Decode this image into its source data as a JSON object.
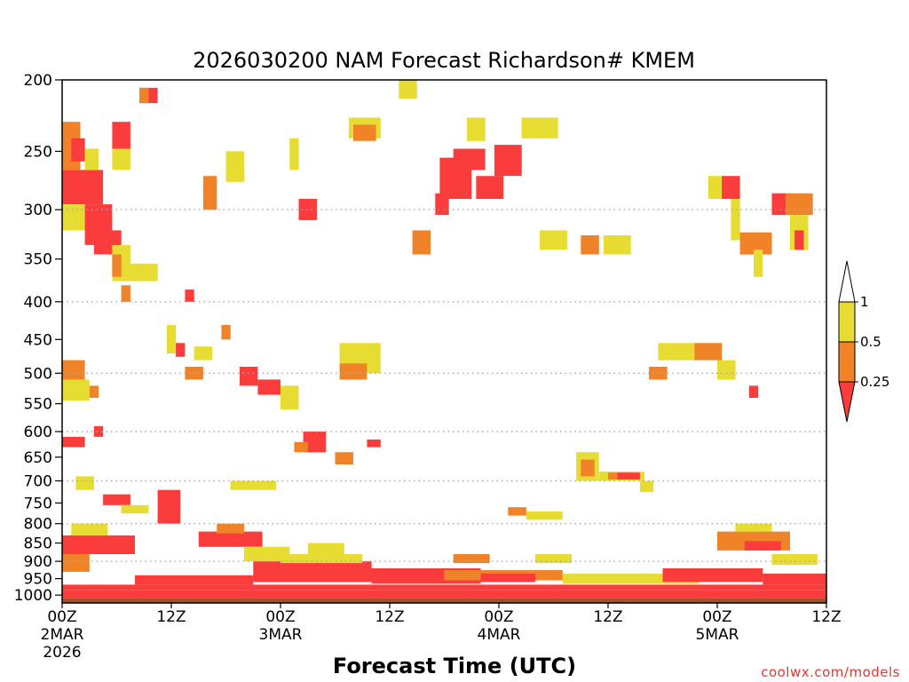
{
  "chart_data": {
    "type": "heatmap",
    "title": "2026030200 NAM Forecast Richardson# KMEM",
    "xlabel": "Forecast Time (UTC)",
    "ylabel": "",
    "y_scale": "log",
    "y_range_hPa": [
      200,
      1025
    ],
    "x_range_hours": [
      0,
      84
    ],
    "y_ticks": [
      200,
      250,
      300,
      350,
      400,
      450,
      500,
      550,
      600,
      650,
      700,
      750,
      800,
      850,
      900,
      950,
      1000
    ],
    "y_tick_labels": [
      "200",
      "250",
      "300",
      "350",
      "400",
      "450",
      "500",
      "550",
      "600",
      "650",
      "700",
      "750",
      "800",
      "850",
      "900",
      "950",
      "1000"
    ],
    "gridlines_hPa": [
      300,
      400,
      500,
      600,
      700,
      800,
      900
    ],
    "x_ticks": [
      {
        "hour": 0,
        "label": "00Z",
        "sub1": "2MAR",
        "sub2": "2026"
      },
      {
        "hour": 12,
        "label": "12Z",
        "sub1": "",
        "sub2": ""
      },
      {
        "hour": 24,
        "label": "00Z",
        "sub1": "3MAR",
        "sub2": ""
      },
      {
        "hour": 36,
        "label": "12Z",
        "sub1": "",
        "sub2": ""
      },
      {
        "hour": 48,
        "label": "00Z",
        "sub1": "4MAR",
        "sub2": ""
      },
      {
        "hour": 60,
        "label": "12Z",
        "sub1": "",
        "sub2": ""
      },
      {
        "hour": 72,
        "label": "00Z",
        "sub1": "5MAR",
        "sub2": ""
      },
      {
        "hour": 84,
        "label": "12Z",
        "sub1": "",
        "sub2": ""
      }
    ],
    "legend": {
      "placement": "right",
      "labels": [
        "1",
        "0.5",
        "0.25"
      ],
      "bins": [
        {
          "range": "0.5 - 1",
          "color": "#e6dc32"
        },
        {
          "range": "0.25 - 0.5",
          "color": "#f08228"
        },
        {
          "range": "< 0.25",
          "color": "#fa3c3c"
        }
      ]
    },
    "colors": {
      "low": "#fa3c3c",
      "mid": "#f08228",
      "high": "#e6dc32",
      "ground": "#a0522d",
      "grid": "#aaaaaa"
    },
    "regions": [
      {
        "t0": 0,
        "t1": 4.5,
        "p0": 265,
        "p1": 295,
        "cat": "low"
      },
      {
        "t0": 0,
        "t1": 2,
        "p0": 228,
        "p1": 265,
        "cat": "mid"
      },
      {
        "t0": 1,
        "t1": 2.5,
        "p0": 240,
        "p1": 258,
        "cat": "low"
      },
      {
        "t0": 2.5,
        "t1": 4,
        "p0": 248,
        "p1": 265,
        "cat": "high"
      },
      {
        "t0": 0,
        "t1": 2.5,
        "p0": 295,
        "p1": 320,
        "cat": "high"
      },
      {
        "t0": 2.5,
        "t1": 5.5,
        "p0": 295,
        "p1": 335,
        "cat": "low"
      },
      {
        "t0": 3.5,
        "t1": 6.5,
        "p0": 320,
        "p1": 345,
        "cat": "low"
      },
      {
        "t0": 5.5,
        "t1": 7.5,
        "p0": 228,
        "p1": 248,
        "cat": "low"
      },
      {
        "t0": 5.5,
        "t1": 7.5,
        "p0": 248,
        "p1": 265,
        "cat": "high"
      },
      {
        "t0": 5.5,
        "t1": 7.5,
        "p0": 335,
        "p1": 375,
        "cat": "high"
      },
      {
        "t0": 5.5,
        "t1": 6.5,
        "p0": 345,
        "p1": 370,
        "cat": "mid"
      },
      {
        "t0": 7.5,
        "t1": 10.5,
        "p0": 355,
        "p1": 375,
        "cat": "high"
      },
      {
        "t0": 6.5,
        "t1": 7.5,
        "p0": 380,
        "p1": 400,
        "cat": "mid"
      },
      {
        "t0": 8.5,
        "t1": 10.5,
        "p0": 205,
        "p1": 215,
        "cat": "low"
      },
      {
        "t0": 8.5,
        "t1": 9.5,
        "p0": 205,
        "p1": 215,
        "cat": "mid"
      },
      {
        "t0": 13.5,
        "t1": 14.5,
        "p0": 385,
        "p1": 400,
        "cat": "low"
      },
      {
        "t0": 0,
        "t1": 2.5,
        "p0": 480,
        "p1": 510,
        "cat": "mid"
      },
      {
        "t0": 0,
        "t1": 3,
        "p0": 510,
        "p1": 545,
        "cat": "high"
      },
      {
        "t0": 3,
        "t1": 4,
        "p0": 520,
        "p1": 540,
        "cat": "mid"
      },
      {
        "t0": 0,
        "t1": 2.5,
        "p0": 610,
        "p1": 630,
        "cat": "low"
      },
      {
        "t0": 3.5,
        "t1": 4.5,
        "p0": 590,
        "p1": 610,
        "cat": "low"
      },
      {
        "t0": 4.5,
        "t1": 7.5,
        "p0": 730,
        "p1": 755,
        "cat": "low"
      },
      {
        "t0": 6.5,
        "t1": 9.5,
        "p0": 755,
        "p1": 775,
        "cat": "high"
      },
      {
        "t0": 10.5,
        "t1": 13,
        "p0": 720,
        "p1": 800,
        "cat": "low"
      },
      {
        "t0": 11.5,
        "t1": 12.5,
        "p0": 430,
        "p1": 470,
        "cat": "high"
      },
      {
        "t0": 12.5,
        "t1": 13.5,
        "p0": 455,
        "p1": 475,
        "cat": "low"
      },
      {
        "t0": 13.5,
        "t1": 15.5,
        "p0": 490,
        "p1": 510,
        "cat": "mid"
      },
      {
        "t0": 14.5,
        "t1": 16.5,
        "p0": 460,
        "p1": 480,
        "cat": "high"
      },
      {
        "t0": 17.5,
        "t1": 18.5,
        "p0": 430,
        "p1": 450,
        "cat": "mid"
      },
      {
        "t0": 19.5,
        "t1": 21.5,
        "p0": 490,
        "p1": 520,
        "cat": "low"
      },
      {
        "t0": 21.5,
        "t1": 24,
        "p0": 510,
        "p1": 535,
        "cat": "low"
      },
      {
        "t0": 24,
        "t1": 26,
        "p0": 520,
        "p1": 560,
        "cat": "high"
      },
      {
        "t0": 18.5,
        "t1": 23.5,
        "p0": 700,
        "p1": 720,
        "cat": "high"
      },
      {
        "t0": 15.5,
        "t1": 17,
        "p0": 270,
        "p1": 300,
        "cat": "mid"
      },
      {
        "t0": 25,
        "t1": 26,
        "p0": 240,
        "p1": 265,
        "cat": "high"
      },
      {
        "t0": 26,
        "t1": 28,
        "p0": 290,
        "p1": 310,
        "cat": "low"
      },
      {
        "t0": 26.5,
        "t1": 29,
        "p0": 600,
        "p1": 640,
        "cat": "low"
      },
      {
        "t0": 25.5,
        "t1": 27,
        "p0": 620,
        "p1": 640,
        "cat": "mid"
      },
      {
        "t0": 30,
        "t1": 32,
        "p0": 640,
        "p1": 665,
        "cat": "mid"
      },
      {
        "t0": 30.5,
        "t1": 35,
        "p0": 455,
        "p1": 500,
        "cat": "high"
      },
      {
        "t0": 30.5,
        "t1": 33.5,
        "p0": 485,
        "p1": 510,
        "cat": "mid"
      },
      {
        "t0": 31.5,
        "t1": 35,
        "p0": 225,
        "p1": 240,
        "cat": "high"
      },
      {
        "t0": 32,
        "t1": 34.5,
        "p0": 230,
        "p1": 242,
        "cat": "mid"
      },
      {
        "t0": 37,
        "t1": 39,
        "p0": 200,
        "p1": 212,
        "cat": "high"
      },
      {
        "t0": 38.5,
        "t1": 40.5,
        "p0": 320,
        "p1": 345,
        "cat": "mid"
      },
      {
        "t0": 33.5,
        "t1": 35,
        "p0": 615,
        "p1": 630,
        "cat": "low"
      },
      {
        "t0": 41.5,
        "t1": 45,
        "p0": 255,
        "p1": 290,
        "cat": "low"
      },
      {
        "t0": 43,
        "t1": 46.5,
        "p0": 248,
        "p1": 265,
        "cat": "low"
      },
      {
        "t0": 41,
        "t1": 42.5,
        "p0": 285,
        "p1": 305,
        "cat": "low"
      },
      {
        "t0": 45.5,
        "t1": 48.5,
        "p0": 270,
        "p1": 290,
        "cat": "low"
      },
      {
        "t0": 47.5,
        "t1": 50.5,
        "p0": 245,
        "p1": 270,
        "cat": "low"
      },
      {
        "t0": 44.5,
        "t1": 46.5,
        "p0": 225,
        "p1": 242,
        "cat": "high"
      },
      {
        "t0": 50.5,
        "t1": 54.5,
        "p0": 225,
        "p1": 240,
        "cat": "high"
      },
      {
        "t0": 52.5,
        "t1": 55.5,
        "p0": 320,
        "p1": 340,
        "cat": "high"
      },
      {
        "t0": 57,
        "t1": 59,
        "p0": 325,
        "p1": 345,
        "cat": "mid"
      },
      {
        "t0": 59.5,
        "t1": 62.5,
        "p0": 325,
        "p1": 345,
        "cat": "high"
      },
      {
        "t0": 56.5,
        "t1": 59,
        "p0": 640,
        "p1": 700,
        "cat": "high"
      },
      {
        "t0": 57,
        "t1": 58.5,
        "p0": 655,
        "p1": 690,
        "cat": "mid"
      },
      {
        "t0": 59,
        "t1": 64,
        "p0": 680,
        "p1": 700,
        "cat": "high"
      },
      {
        "t0": 61,
        "t1": 63.5,
        "p0": 682,
        "p1": 697,
        "cat": "low"
      },
      {
        "t0": 60,
        "t1": 61,
        "p0": 682,
        "p1": 697,
        "cat": "mid"
      },
      {
        "t0": 63.5,
        "t1": 65,
        "p0": 700,
        "p1": 725,
        "cat": "high"
      },
      {
        "t0": 64.5,
        "t1": 66.5,
        "p0": 490,
        "p1": 510,
        "cat": "mid"
      },
      {
        "t0": 65.5,
        "t1": 70,
        "p0": 455,
        "p1": 480,
        "cat": "high"
      },
      {
        "t0": 69.5,
        "t1": 72.5,
        "p0": 455,
        "p1": 480,
        "cat": "mid"
      },
      {
        "t0": 72,
        "t1": 74,
        "p0": 480,
        "p1": 510,
        "cat": "high"
      },
      {
        "t0": 71,
        "t1": 72.5,
        "p0": 270,
        "p1": 290,
        "cat": "high"
      },
      {
        "t0": 72.5,
        "t1": 74.5,
        "p0": 270,
        "p1": 290,
        "cat": "low"
      },
      {
        "t0": 73.5,
        "t1": 74.5,
        "p0": 290,
        "p1": 330,
        "cat": "high"
      },
      {
        "t0": 74.5,
        "t1": 78,
        "p0": 322,
        "p1": 345,
        "cat": "mid"
      },
      {
        "t0": 76,
        "t1": 77,
        "p0": 340,
        "p1": 370,
        "cat": "high"
      },
      {
        "t0": 78,
        "t1": 80,
        "p0": 285,
        "p1": 305,
        "cat": "low"
      },
      {
        "t0": 79.5,
        "t1": 82.5,
        "p0": 285,
        "p1": 305,
        "cat": "mid"
      },
      {
        "t0": 80,
        "t1": 82,
        "p0": 305,
        "p1": 340,
        "cat": "high"
      },
      {
        "t0": 80.5,
        "t1": 81.5,
        "p0": 320,
        "p1": 340,
        "cat": "low"
      },
      {
        "t0": 75.5,
        "t1": 76.5,
        "p0": 520,
        "p1": 540,
        "cat": "low"
      },
      {
        "t0": 0,
        "t1": 84,
        "p0": 985,
        "p1": 1010,
        "cat": "low"
      },
      {
        "t0": 0,
        "t1": 84,
        "p0": 968,
        "p1": 985,
        "cat": "low"
      },
      {
        "t0": 8,
        "t1": 21,
        "p0": 940,
        "p1": 968,
        "cat": "low"
      },
      {
        "t0": 21,
        "t1": 34,
        "p0": 900,
        "p1": 960,
        "cat": "low"
      },
      {
        "t0": 24,
        "t1": 33,
        "p0": 880,
        "p1": 905,
        "cat": "high"
      },
      {
        "t0": 34,
        "t1": 46,
        "p0": 920,
        "p1": 965,
        "cat": "low"
      },
      {
        "t0": 42,
        "t1": 55,
        "p0": 925,
        "p1": 955,
        "cat": "mid"
      },
      {
        "t0": 46,
        "t1": 52,
        "p0": 935,
        "p1": 960,
        "cat": "low"
      },
      {
        "t0": 55,
        "t1": 70,
        "p0": 935,
        "p1": 965,
        "cat": "high"
      },
      {
        "t0": 66,
        "t1": 77,
        "p0": 920,
        "p1": 960,
        "cat": "low"
      },
      {
        "t0": 77,
        "t1": 84,
        "p0": 935,
        "p1": 968,
        "cat": "low"
      },
      {
        "t0": 0,
        "t1": 8,
        "p0": 830,
        "p1": 880,
        "cat": "low"
      },
      {
        "t0": 0,
        "t1": 3,
        "p0": 880,
        "p1": 930,
        "cat": "mid"
      },
      {
        "t0": 1,
        "t1": 5,
        "p0": 800,
        "p1": 830,
        "cat": "high"
      },
      {
        "t0": 15,
        "t1": 22,
        "p0": 820,
        "p1": 860,
        "cat": "low"
      },
      {
        "t0": 17,
        "t1": 20,
        "p0": 800,
        "p1": 825,
        "cat": "mid"
      },
      {
        "t0": 20,
        "t1": 25,
        "p0": 860,
        "p1": 900,
        "cat": "high"
      },
      {
        "t0": 27,
        "t1": 31,
        "p0": 850,
        "p1": 880,
        "cat": "high"
      },
      {
        "t0": 43,
        "t1": 47,
        "p0": 880,
        "p1": 905,
        "cat": "mid"
      },
      {
        "t0": 52,
        "t1": 56,
        "p0": 880,
        "p1": 905,
        "cat": "high"
      },
      {
        "t0": 72,
        "t1": 80,
        "p0": 820,
        "p1": 870,
        "cat": "mid"
      },
      {
        "t0": 74,
        "t1": 78,
        "p0": 800,
        "p1": 820,
        "cat": "high"
      },
      {
        "t0": 75,
        "t1": 79,
        "p0": 845,
        "p1": 870,
        "cat": "low"
      },
      {
        "t0": 78,
        "t1": 83,
        "p0": 880,
        "p1": 910,
        "cat": "high"
      },
      {
        "t0": 51,
        "t1": 55,
        "p0": 770,
        "p1": 790,
        "cat": "high"
      },
      {
        "t0": 49,
        "t1": 51,
        "p0": 760,
        "p1": 780,
        "cat": "mid"
      },
      {
        "t0": 1.5,
        "t1": 3.5,
        "p0": 690,
        "p1": 720,
        "cat": "high"
      },
      {
        "t0": 18,
        "t1": 20,
        "p0": 250,
        "p1": 275,
        "cat": "high"
      }
    ]
  },
  "credit": "coolwx.com/models"
}
